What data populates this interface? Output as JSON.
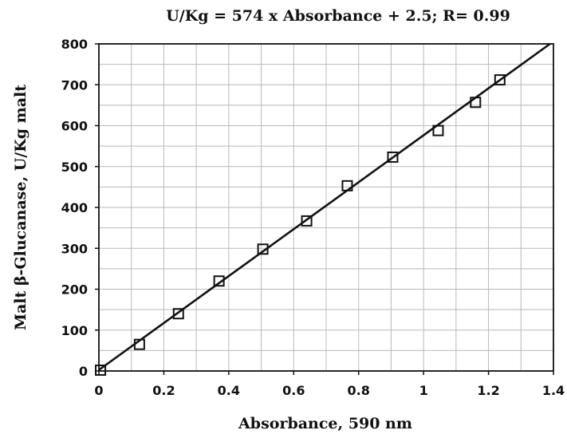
{
  "chart_data": {
    "type": "scatter",
    "title": "U/Kg =  574 x Absorbance + 2.5;  R= 0.99",
    "xlabel": "Absorbance,  590 nm",
    "ylabel": "Malt β-Glucanase, U/Kg malt",
    "xlim": [
      0,
      1.4
    ],
    "ylim": [
      0,
      800
    ],
    "xticks": [
      0,
      0.2,
      0.4,
      0.6,
      0.8,
      1,
      1.2,
      1.4
    ],
    "xtick_labels": [
      "0",
      "0.2",
      "0.4",
      "0.6",
      "0.8",
      "1",
      "1.2",
      "1.4"
    ],
    "yticks": [
      0,
      100,
      200,
      300,
      400,
      500,
      600,
      700,
      800
    ],
    "ytick_labels": [
      "0",
      "100",
      "200",
      "300",
      "400",
      "500",
      "600",
      "700",
      "800"
    ],
    "grid": true,
    "series": [
      {
        "marker": "open-square",
        "x": [
          0.005,
          0.125,
          0.245,
          0.37,
          0.505,
          0.64,
          0.765,
          0.905,
          1.045,
          1.16,
          1.235
        ],
        "y": [
          2,
          65,
          140,
          220,
          298,
          367,
          453,
          523,
          588,
          657,
          712
        ]
      }
    ],
    "fit_line": {
      "slope": 574,
      "intercept": 2.5,
      "x_range": [
        0,
        1.4
      ]
    },
    "colors": {
      "ink": "#111111",
      "grid": "#b9b9b9",
      "background": "#ffffff"
    }
  }
}
